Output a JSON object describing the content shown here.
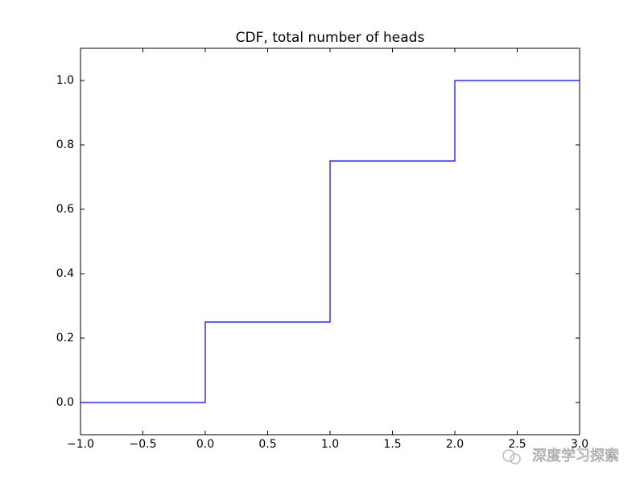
{
  "chart_data": {
    "type": "line",
    "title": "CDF, total number of heads",
    "x": [
      -1,
      0,
      0,
      1,
      1,
      2,
      2,
      3
    ],
    "values": [
      0,
      0,
      0.25,
      0.25,
      0.75,
      0.75,
      1,
      1
    ],
    "color": "#0000ff",
    "xlim": [
      -1,
      3
    ],
    "ylim": [
      -0.1,
      1.1
    ],
    "xticks": [
      {
        "value": -1,
        "label": "−1.0"
      },
      {
        "value": -0.5,
        "label": "−0.5"
      },
      {
        "value": 0,
        "label": "0.0"
      },
      0.5,
      {
        "value": 1,
        "label": "1.0"
      },
      1.5,
      {
        "value": 2,
        "label": "2.0"
      },
      2.5,
      {
        "value": 3,
        "label": "3.0"
      }
    ],
    "yticks": [
      {
        "value": 0,
        "label": "0.0"
      },
      0.2,
      0.4,
      0.6,
      0.8,
      {
        "value": 1,
        "label": "1.0"
      }
    ],
    "grid": false
  },
  "watermark": "深度学习探索"
}
